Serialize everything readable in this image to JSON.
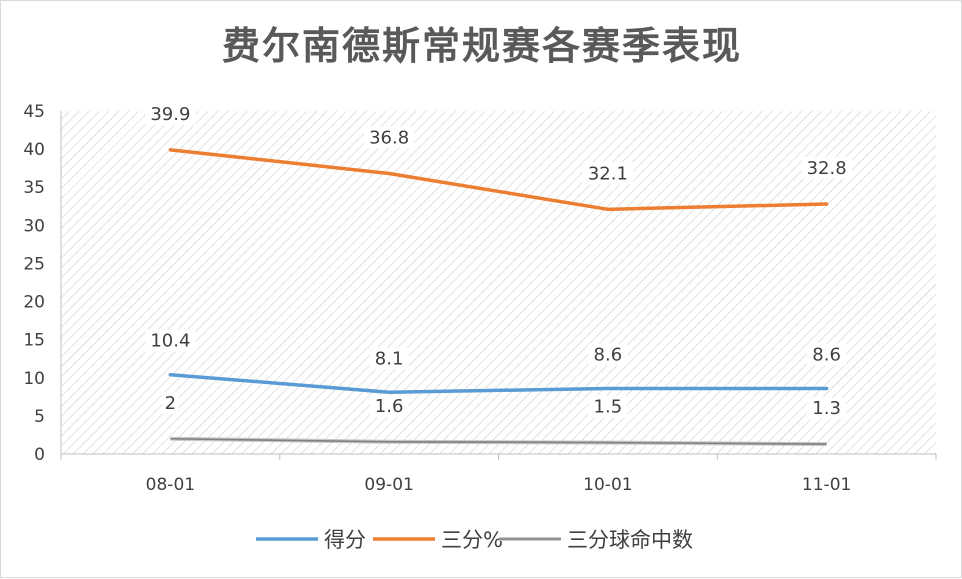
{
  "chart_data": {
    "type": "line",
    "title": "费尔南德斯常规赛各赛季表现",
    "categories": [
      "08-01",
      "09-01",
      "10-01",
      "11-01"
    ],
    "ylim": [
      0,
      45
    ],
    "yticks": [
      0,
      5,
      10,
      15,
      20,
      25,
      30,
      35,
      40,
      45
    ],
    "grid": false,
    "legend_position": "bottom",
    "series": [
      {
        "name": "得分",
        "values": [
          10.4,
          8.1,
          8.6,
          8.6
        ],
        "labels": [
          "10.4",
          "8.1",
          "8.6",
          "8.6"
        ],
        "color": "#5b9bd5"
      },
      {
        "name": "三分%",
        "values": [
          39.9,
          36.8,
          32.1,
          32.8
        ],
        "labels": [
          "39.9",
          "36.8",
          "32.1",
          "32.8"
        ],
        "color": "#ed7d31"
      },
      {
        "name": "三分球命中数",
        "values": [
          2,
          1.6,
          1.5,
          1.3
        ],
        "labels": [
          "2",
          "1.6",
          "1.5",
          "1.3"
        ],
        "color": "#808080"
      }
    ]
  }
}
